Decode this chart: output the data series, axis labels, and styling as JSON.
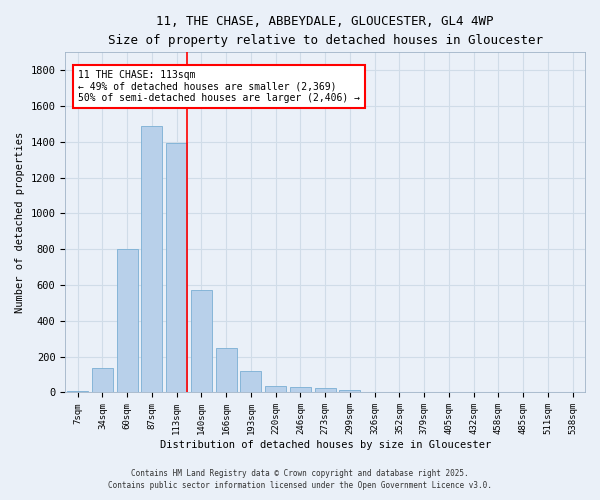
{
  "title_line1": "11, THE CHASE, ABBEYDALE, GLOUCESTER, GL4 4WP",
  "title_line2": "Size of property relative to detached houses in Gloucester",
  "xlabel": "Distribution of detached houses by size in Gloucester",
  "ylabel": "Number of detached properties",
  "categories": [
    "7sqm",
    "34sqm",
    "60sqm",
    "87sqm",
    "113sqm",
    "140sqm",
    "166sqm",
    "193sqm",
    "220sqm",
    "246sqm",
    "273sqm",
    "299sqm",
    "326sqm",
    "352sqm",
    "379sqm",
    "405sqm",
    "432sqm",
    "458sqm",
    "485sqm",
    "511sqm",
    "538sqm"
  ],
  "values": [
    10,
    135,
    800,
    1490,
    1395,
    570,
    250,
    120,
    38,
    28,
    25,
    12,
    5,
    5,
    5,
    2,
    2,
    1,
    1,
    1,
    0
  ],
  "bar_color": "#b8d0ea",
  "bar_edge_color": "#7aafd4",
  "background_color": "#eaf0f8",
  "grid_color": "#d0dce8",
  "red_line_index": 4,
  "annotation_line1": "11 THE CHASE: 113sqm",
  "annotation_line2": "← 49% of detached houses are smaller (2,369)",
  "annotation_line3": "50% of semi-detached houses are larger (2,406) →",
  "ylim": [
    0,
    1900
  ],
  "yticks": [
    0,
    200,
    400,
    600,
    800,
    1000,
    1200,
    1400,
    1600,
    1800
  ],
  "footnote_line1": "Contains HM Land Registry data © Crown copyright and database right 2025.",
  "footnote_line2": "Contains public sector information licensed under the Open Government Licence v3.0."
}
